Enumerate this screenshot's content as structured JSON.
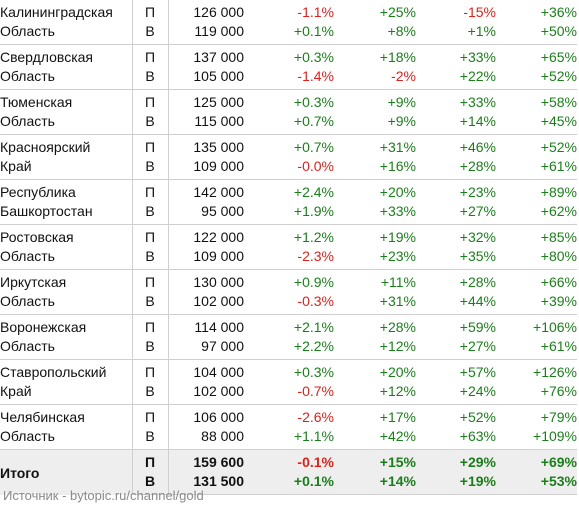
{
  "colors": {
    "positive": "#1a7f1a",
    "negative": "#e0201b",
    "total_bg": "#eeeeee"
  },
  "rows": [
    {
      "name1": "Калининградская",
      "name2": "Область",
      "p": {
        "type": "П",
        "price": "126 000",
        "d1": "-1.1%",
        "d2": "+25%",
        "d3": "-15%",
        "d4": "+36%"
      },
      "v": {
        "type": "В",
        "price": "119 000",
        "d1": "+0.1%",
        "d2": "+8%",
        "d3": "+1%",
        "d4": "+50%"
      }
    },
    {
      "name1": "Свердловская",
      "name2": "Область",
      "p": {
        "type": "П",
        "price": "137 000",
        "d1": "+0.3%",
        "d2": "+18%",
        "d3": "+33%",
        "d4": "+65%"
      },
      "v": {
        "type": "В",
        "price": "105 000",
        "d1": "-1.4%",
        "d2": "-2%",
        "d3": "+22%",
        "d4": "+52%"
      }
    },
    {
      "name1": "Тюменская",
      "name2": "Область",
      "p": {
        "type": "П",
        "price": "125 000",
        "d1": "+0.3%",
        "d2": "+9%",
        "d3": "+33%",
        "d4": "+58%"
      },
      "v": {
        "type": "В",
        "price": "115 000",
        "d1": "+0.7%",
        "d2": "+9%",
        "d3": "+14%",
        "d4": "+45%"
      }
    },
    {
      "name1": "Красноярский",
      "name2": "Край",
      "p": {
        "type": "П",
        "price": "135 000",
        "d1": "+0.7%",
        "d2": "+31%",
        "d3": "+46%",
        "d4": "+52%"
      },
      "v": {
        "type": "В",
        "price": "109 000",
        "d1": "-0.0%",
        "d2": "+16%",
        "d3": "+28%",
        "d4": "+61%"
      }
    },
    {
      "name1": "Республика",
      "name2": "Башкортостан",
      "p": {
        "type": "П",
        "price": "142 000",
        "d1": "+2.4%",
        "d2": "+20%",
        "d3": "+23%",
        "d4": "+89%"
      },
      "v": {
        "type": "В",
        "price": "95 000",
        "d1": "+1.9%",
        "d2": "+33%",
        "d3": "+27%",
        "d4": "+62%"
      }
    },
    {
      "name1": "Ростовская",
      "name2": "Область",
      "p": {
        "type": "П",
        "price": "122 000",
        "d1": "+1.2%",
        "d2": "+19%",
        "d3": "+32%",
        "d4": "+85%"
      },
      "v": {
        "type": "В",
        "price": "109 000",
        "d1": "-2.3%",
        "d2": "+23%",
        "d3": "+35%",
        "d4": "+80%"
      }
    },
    {
      "name1": "Иркутская",
      "name2": "Область",
      "p": {
        "type": "П",
        "price": "130 000",
        "d1": "+0.9%",
        "d2": "+11%",
        "d3": "+28%",
        "d4": "+66%"
      },
      "v": {
        "type": "В",
        "price": "102 000",
        "d1": "-0.3%",
        "d2": "+31%",
        "d3": "+44%",
        "d4": "+39%"
      }
    },
    {
      "name1": "Воронежская",
      "name2": "Область",
      "p": {
        "type": "П",
        "price": "114 000",
        "d1": "+2.1%",
        "d2": "+28%",
        "d3": "+59%",
        "d4": "+106%"
      },
      "v": {
        "type": "В",
        "price": "97 000",
        "d1": "+2.2%",
        "d2": "+12%",
        "d3": "+27%",
        "d4": "+61%"
      }
    },
    {
      "name1": "Ставропольский",
      "name2": "Край",
      "p": {
        "type": "П",
        "price": "104 000",
        "d1": "+0.3%",
        "d2": "+20%",
        "d3": "+57%",
        "d4": "+126%"
      },
      "v": {
        "type": "В",
        "price": "102 000",
        "d1": "-0.7%",
        "d2": "+12%",
        "d3": "+24%",
        "d4": "+76%"
      }
    },
    {
      "name1": "Челябинская",
      "name2": "Область",
      "p": {
        "type": "П",
        "price": "106 000",
        "d1": "-2.6%",
        "d2": "+17%",
        "d3": "+52%",
        "d4": "+79%"
      },
      "v": {
        "type": "В",
        "price": "88 000",
        "d1": "+1.1%",
        "d2": "+42%",
        "d3": "+63%",
        "d4": "+109%"
      }
    }
  ],
  "total": {
    "label": "Итого",
    "p": {
      "type": "П",
      "price": "159 600",
      "d1": "-0.1%",
      "d2": "+15%",
      "d3": "+29%",
      "d4": "+69%"
    },
    "v": {
      "type": "В",
      "price": "131 500",
      "d1": "+0.1%",
      "d2": "+14%",
      "d3": "+19%",
      "d4": "+53%"
    }
  },
  "source": "Источник - bytopic.ru/channel/gold"
}
